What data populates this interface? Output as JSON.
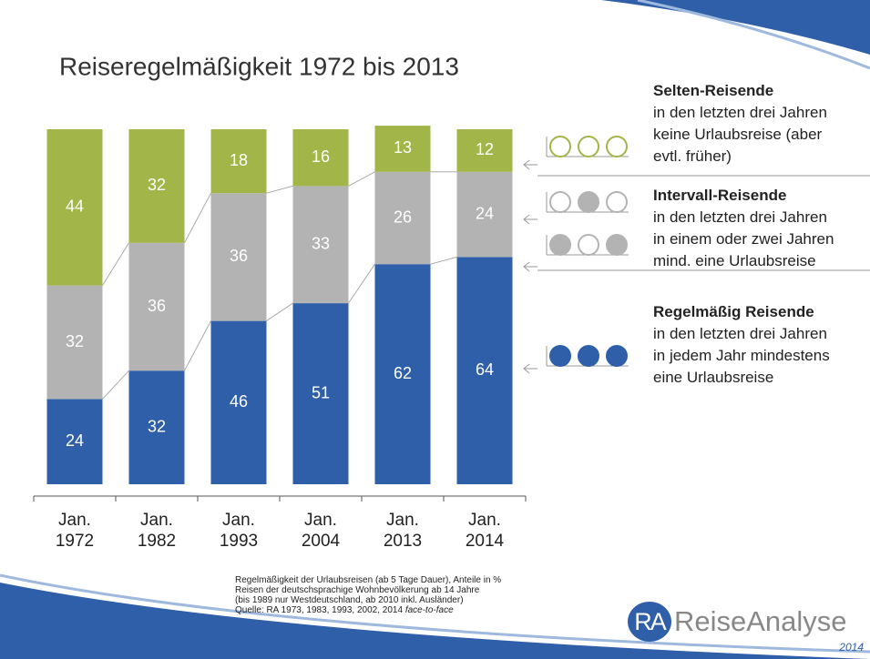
{
  "chart_data": {
    "type": "stacked_bar",
    "title": "Reiseregelmäßigkeit 1972 bis 2013",
    "categories": [
      "Jan. 1972",
      "Jan. 1982",
      "Jan. 1993",
      "Jan. 2004",
      "Jan. 2013",
      "Jan. 2014"
    ],
    "ylim": [
      0,
      100
    ],
    "series": [
      {
        "name": "Regelmäßig Reisende",
        "color": "#2f5fa9",
        "values": [
          24,
          32,
          46,
          51,
          62,
          64
        ],
        "description": [
          "in den letzten drei Jahren",
          "in jedem Jahr mindestens",
          "eine Urlaubsreise"
        ]
      },
      {
        "name": "Intervall-Reisende",
        "color": "#b3b3b3",
        "values": [
          32,
          36,
          36,
          33,
          26,
          24
        ],
        "description": [
          "in den letzten drei Jahren",
          "in einem oder zwei Jahren",
          "mind. eine Urlaubsreise"
        ]
      },
      {
        "name": "Selten-Reisende",
        "color": "#a1b548",
        "values": [
          44,
          32,
          18,
          16,
          13,
          12
        ],
        "description": [
          "in den letzten drei Jahren",
          "keine Urlaubsreise (aber",
          "evtl. früher)"
        ]
      }
    ],
    "footnote": [
      "Regelmäßigkeit der Urlaubsreisen (ab 5 Tage Dauer), Anteile in %",
      "Reisen der deutschsprachige Wohnbevölkerung ab 14 Jahre",
      "(bis 1989 nur Westdeutschland, ab 2010 inkl. Ausländer)"
    ],
    "source": "Quelle: RA 1973, 1983, 1993, 2002, 2014",
    "source_method": "face-to-face",
    "logo": {
      "mark": "RA",
      "name": "ReiseAnalyse",
      "year": "2014"
    }
  }
}
